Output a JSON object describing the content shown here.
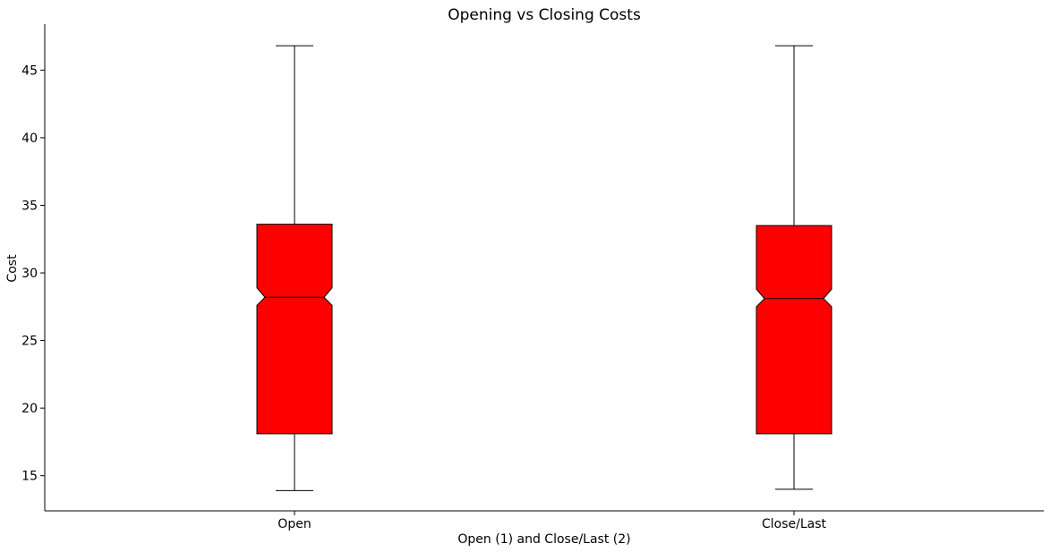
{
  "chart_data": {
    "type": "boxplot",
    "title": "Opening vs Closing Costs",
    "xlabel": "Open (1) and Close/Last (2)",
    "ylabel": "Cost",
    "categories": [
      "Open",
      "Close/Last"
    ],
    "ylim": [
      12.4,
      48.4
    ],
    "yticks": [
      15,
      20,
      25,
      30,
      35,
      40,
      45
    ],
    "notched": true,
    "box_color": "#ff0000",
    "grid": false,
    "legend": "none",
    "boxes": [
      {
        "name": "Open",
        "whislo": 13.9,
        "q1": 18.1,
        "med": 28.2,
        "q3": 33.6,
        "whishi": 46.8,
        "notch_lo": 27.6,
        "notch_hi": 28.9
      },
      {
        "name": "Close/Last",
        "whislo": 14.0,
        "q1": 18.1,
        "med": 28.1,
        "q3": 33.5,
        "whishi": 46.8,
        "notch_lo": 27.5,
        "notch_hi": 28.8
      }
    ]
  }
}
